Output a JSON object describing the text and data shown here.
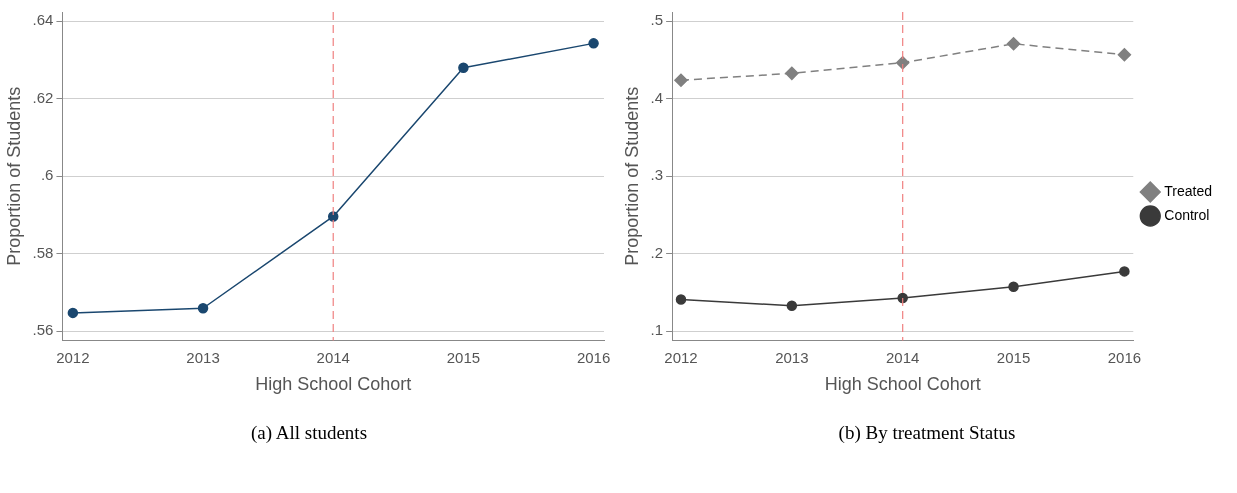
{
  "chart_data": [
    {
      "type": "line",
      "xlabel": "High School Cohort",
      "ylabel": "Proportion of Students",
      "x": [
        2012,
        2013,
        2014,
        2015,
        2016
      ],
      "series": [
        {
          "color": "#1a476f",
          "values": [
            0.5647,
            0.5659,
            0.5896,
            0.628,
            0.6343
          ]
        }
      ],
      "xlim": [
        2011.92,
        2016.08
      ],
      "xticks": [
        2012,
        2013,
        2014,
        2015,
        2016
      ],
      "ylim": [
        0.5576,
        0.6424
      ],
      "yticks": [
        {
          "value": 0.56,
          "label": ".56"
        },
        {
          "value": 0.58,
          "label": ".58"
        },
        {
          "value": 0.6,
          "label": ".6"
        },
        {
          "value": 0.62,
          "label": ".62"
        },
        {
          "value": 0.64,
          "label": ".64"
        }
      ],
      "grid": "y",
      "marker": "circle",
      "line_style": "solid",
      "ref_lines": [
        {
          "axis": "x",
          "value": 2014,
          "color": "#f08080",
          "line_style": "dashed"
        }
      ],
      "annotations": [
        "(a) All students"
      ]
    },
    {
      "type": "line",
      "xlabel": "High School Cohort",
      "ylabel": "Proportion of Students",
      "x": [
        2012,
        2013,
        2014,
        2015,
        2016
      ],
      "series": [
        {
          "name": "Treated",
          "color": "#808080",
          "values": [
            0.4238,
            0.4327,
            0.4464,
            0.4708,
            0.4567
          ],
          "marker": "diamond",
          "line_style": "dashed"
        },
        {
          "name": "Control",
          "color": "#3a3a3a",
          "values": [
            0.1409,
            0.1329,
            0.1428,
            0.1574,
            0.1772
          ],
          "marker": "circle",
          "line_style": "solid"
        }
      ],
      "xlim": [
        2011.92,
        2016.08
      ],
      "xticks": [
        2012,
        2013,
        2014,
        2015,
        2016
      ],
      "ylim": [
        0.0882,
        0.5118
      ],
      "yticks": [
        {
          "value": 0.1,
          "label": ".1"
        },
        {
          "value": 0.2,
          "label": ".2"
        },
        {
          "value": 0.3,
          "label": ".3"
        },
        {
          "value": 0.4,
          "label": ".4"
        },
        {
          "value": 0.5,
          "label": ".5"
        }
      ],
      "grid": "y",
      "legend": "right",
      "ref_lines": [
        {
          "axis": "x",
          "value": 2014,
          "color": "#f08080",
          "line_style": "dashed"
        }
      ],
      "annotations": [
        "(b) By treatment Status"
      ]
    }
  ]
}
